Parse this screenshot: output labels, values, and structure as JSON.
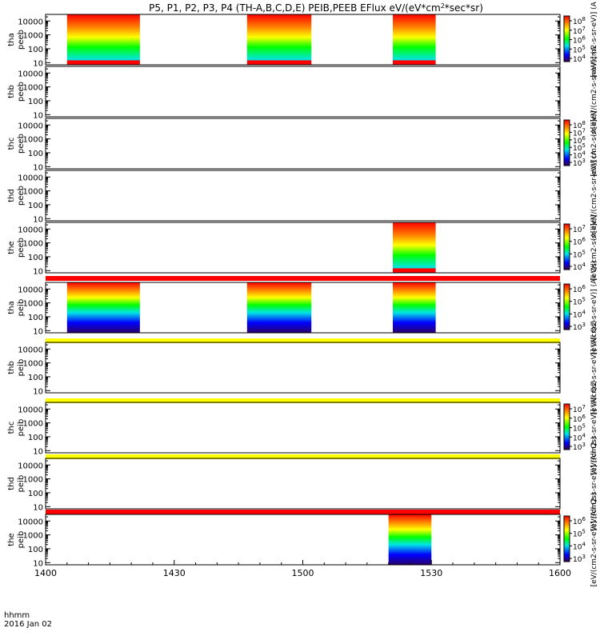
{
  "title": "P5, P1, P2, P3, P4 (TH-A,B,C,D,E) PEIB,PEEB EFlux eV/(eV*cm",
  "title_sup": "2",
  "title_tail": "*sec*sr)",
  "x_corner_label_1": "hhmm",
  "x_corner_label_2": "2016 Jan 02",
  "chart_data": {
    "type": "heatmap",
    "x_axis": {
      "range": [
        "14:00",
        "16:00"
      ],
      "tick_labels": [
        "1400",
        "1430",
        "1500",
        "1530",
        "1600"
      ]
    },
    "y_axis": {
      "scale": "log",
      "range": [
        7,
        30000
      ],
      "tick_labels": [
        "10",
        "100",
        "1000",
        "10000"
      ]
    },
    "colormap": [
      "#ff0000",
      "#ff7f00",
      "#ffff00",
      "#00ff00",
      "#00e5e5",
      "#0000ff",
      "#6600aa"
    ],
    "panels": [
      {
        "label_1": "tha",
        "label_2": "peeb",
        "colorbar": {
          "ticks": [
            "10^8",
            "10^7",
            "10^6",
            "10^5",
            "10^4"
          ],
          "label": "[eV/(cm2-s-sr-eV)] (A"
        },
        "data_intervals": [
          [
            "14:05",
            "14:22"
          ],
          [
            "14:47",
            "15:02"
          ],
          [
            "15:21",
            "15:31"
          ]
        ]
      },
      {
        "label_1": "thb",
        "label_2": "peeb",
        "colorbar": null,
        "side_label": "(A[ll]eV/(cm2-s-sr-eV)] (A",
        "data_intervals": []
      },
      {
        "label_1": "thc",
        "label_2": "peeb",
        "colorbar": {
          "ticks": [
            "10^8",
            "10^7",
            "10^6",
            "10^5",
            "10^4",
            "10^3"
          ],
          "label": "[eV/(cm2-s-sr-eV)]"
        },
        "data_intervals": []
      },
      {
        "label_1": "thd",
        "label_2": "peeb",
        "colorbar": null,
        "side_label": "(A[ll]eV/(cm2-s-sr-eV)] (A",
        "data_intervals": []
      },
      {
        "label_1": "the",
        "label_2": "peeb",
        "colorbar": {
          "ticks": [
            "10^7",
            "10^6",
            "10^5",
            "10^4"
          ],
          "label": "[eV/(cm2-s-sr-eV)]"
        },
        "data_intervals": [
          [
            "15:21",
            "15:31"
          ]
        ]
      },
      {
        "label_1": "tha",
        "label_2": "peib",
        "colorbar": {
          "ticks": [
            "10^6",
            "10^5",
            "10^4",
            "10^3"
          ],
          "label": "[eV/(cm2-s-sr-eV)] (All Qs)"
        },
        "data_intervals": [
          [
            "14:05",
            "14:22"
          ],
          [
            "14:47",
            "15:02"
          ],
          [
            "15:21",
            "15:31"
          ]
        ]
      },
      {
        "label_1": "thb",
        "label_2": "peib",
        "colorbar": null,
        "side_label": "[eV/(cm2-s-sr-eV)] (All Qs)",
        "data_intervals": []
      },
      {
        "label_1": "thc",
        "label_2": "peib",
        "colorbar": {
          "ticks": [
            "10^7",
            "10^6",
            "10^5",
            "10^4",
            "10^3"
          ],
          "label": "[eV/(cm2-s-sr-eV)] (All Qs)"
        },
        "data_intervals": []
      },
      {
        "label_1": "thd",
        "label_2": "peib",
        "colorbar": null,
        "side_label": "[eV/(cm2-s-sr-eV)] (All Qs)",
        "data_intervals": []
      },
      {
        "label_1": "the",
        "label_2": "peib",
        "colorbar": {
          "ticks": [
            "10^6",
            "10^5",
            "10^4",
            "10^3"
          ],
          "label": "[eV/(cm2-s-sr-eV)] (All Qs)"
        },
        "data_intervals": [
          [
            "15:20",
            "15:30"
          ]
        ]
      }
    ],
    "flag_bars": [
      {
        "color": "#ff0000"
      },
      {
        "color": "#ffff00"
      },
      {
        "color": "#ffff00"
      },
      {
        "color": "#ffff00"
      },
      {
        "color": "#ff0000"
      }
    ]
  }
}
